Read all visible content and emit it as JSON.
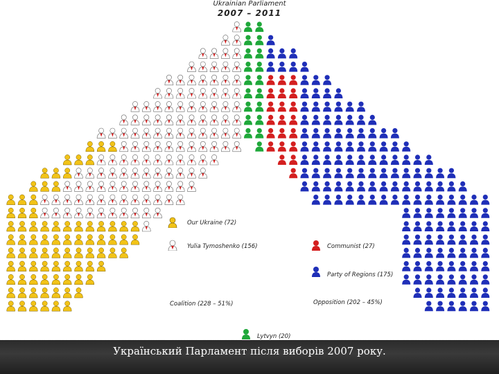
{
  "header": {
    "title": "Ukrainian Parliament",
    "period": "2007 – 2011"
  },
  "parties": [
    {
      "key": "our_ukraine",
      "label": "Our Ukraine (72)",
      "seats": 72,
      "color": "#f2c318",
      "side": "coalition"
    },
    {
      "key": "tymoshenko",
      "label": "Yulia Tymoshenko (156)",
      "seats": 156,
      "color": "#ffffff",
      "accent": "#d41f1f",
      "side": "coalition"
    },
    {
      "key": "lytvyn",
      "label": "Lytvyn (20)",
      "seats": 20,
      "color": "#1fa83a",
      "side": "center"
    },
    {
      "key": "communist",
      "label": "Communist (27)",
      "seats": 27,
      "color": "#d41f1f",
      "side": "opposition"
    },
    {
      "key": "regions",
      "label": "Party of Regions (175)",
      "seats": 175,
      "color": "#1f2fb8",
      "side": "opposition"
    }
  ],
  "blocs": {
    "coalition": "Coalition (228 – 51%)",
    "opposition": "Opposition (202 – 45%)"
  },
  "caption": "Український Парламент після виборів 2007 року.",
  "chart_data": {
    "type": "parliament",
    "title": "Ukrainian Parliament",
    "subtitle": "2007 – 2011",
    "series": [
      {
        "name": "Our Ukraine",
        "values": [
          72
        ]
      },
      {
        "name": "Yulia Tymoshenko",
        "values": [
          156
        ]
      },
      {
        "name": "Lytvyn",
        "values": [
          20
        ]
      },
      {
        "name": "Communist",
        "values": [
          27
        ]
      },
      {
        "name": "Party of Regions",
        "values": [
          175
        ]
      }
    ],
    "blocs": [
      {
        "name": "Coalition",
        "seats": 228,
        "percent": 51
      },
      {
        "name": "Opposition",
        "seats": 202,
        "percent": 45
      }
    ]
  }
}
